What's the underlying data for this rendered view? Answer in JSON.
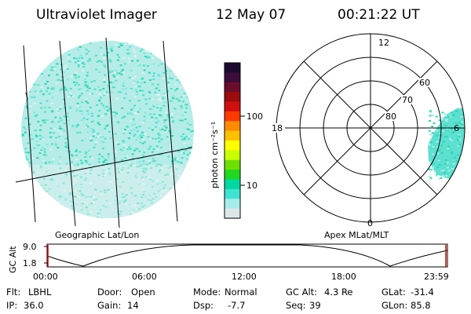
{
  "header": {
    "instrument": "Ultraviolet Imager",
    "date": "12 May 07",
    "time": "00:21:22 UT"
  },
  "colorbar": {
    "unit_label": "photon cm⁻²s⁻¹",
    "ticks": [
      "100",
      "10"
    ],
    "colors": [
      "#1b0a2e",
      "#3a0d3a",
      "#6b0d2a",
      "#9c0c10",
      "#d01010",
      "#ff3a00",
      "#ff8c00",
      "#ffc000",
      "#ffff00",
      "#c8ff00",
      "#6ee000",
      "#20d820",
      "#00d8a0",
      "#3fe3d2",
      "#a6ecea",
      "#dde7e7"
    ]
  },
  "geo_panel": {
    "label": "Geographic Lat/Lon"
  },
  "polar_panel": {
    "label": "Apex MLat/MLT",
    "lat_labels": [
      "80",
      "70",
      "60"
    ],
    "mlt_labels": {
      "top": "12",
      "left": "18",
      "right": "6",
      "bottom": "0"
    }
  },
  "altitude_plot": {
    "ylabel": "GC Alt",
    "yticks": [
      "9.0",
      "1.8"
    ],
    "xticks": [
      "00:00",
      "06:00",
      "12:00",
      "18:00",
      "23:59"
    ]
  },
  "status": {
    "row1": [
      {
        "label": "Flt:",
        "value": "LBHL"
      },
      {
        "label": "Door:",
        "value": "Open"
      },
      {
        "label": "Mode:",
        "value": "Normal"
      },
      {
        "label": "GC Alt:",
        "value": "4.3 Re"
      },
      {
        "label": "GLat:",
        "value": "-31.4"
      }
    ],
    "row2": [
      {
        "label": "IP:",
        "value": "36.0"
      },
      {
        "label": "Gain:",
        "value": "14"
      },
      {
        "label": "Dsp:",
        "value": "-7.7"
      },
      {
        "label": "Seq:",
        "value": "39"
      },
      {
        "label": "GLon:",
        "value": "85.8"
      }
    ]
  }
}
